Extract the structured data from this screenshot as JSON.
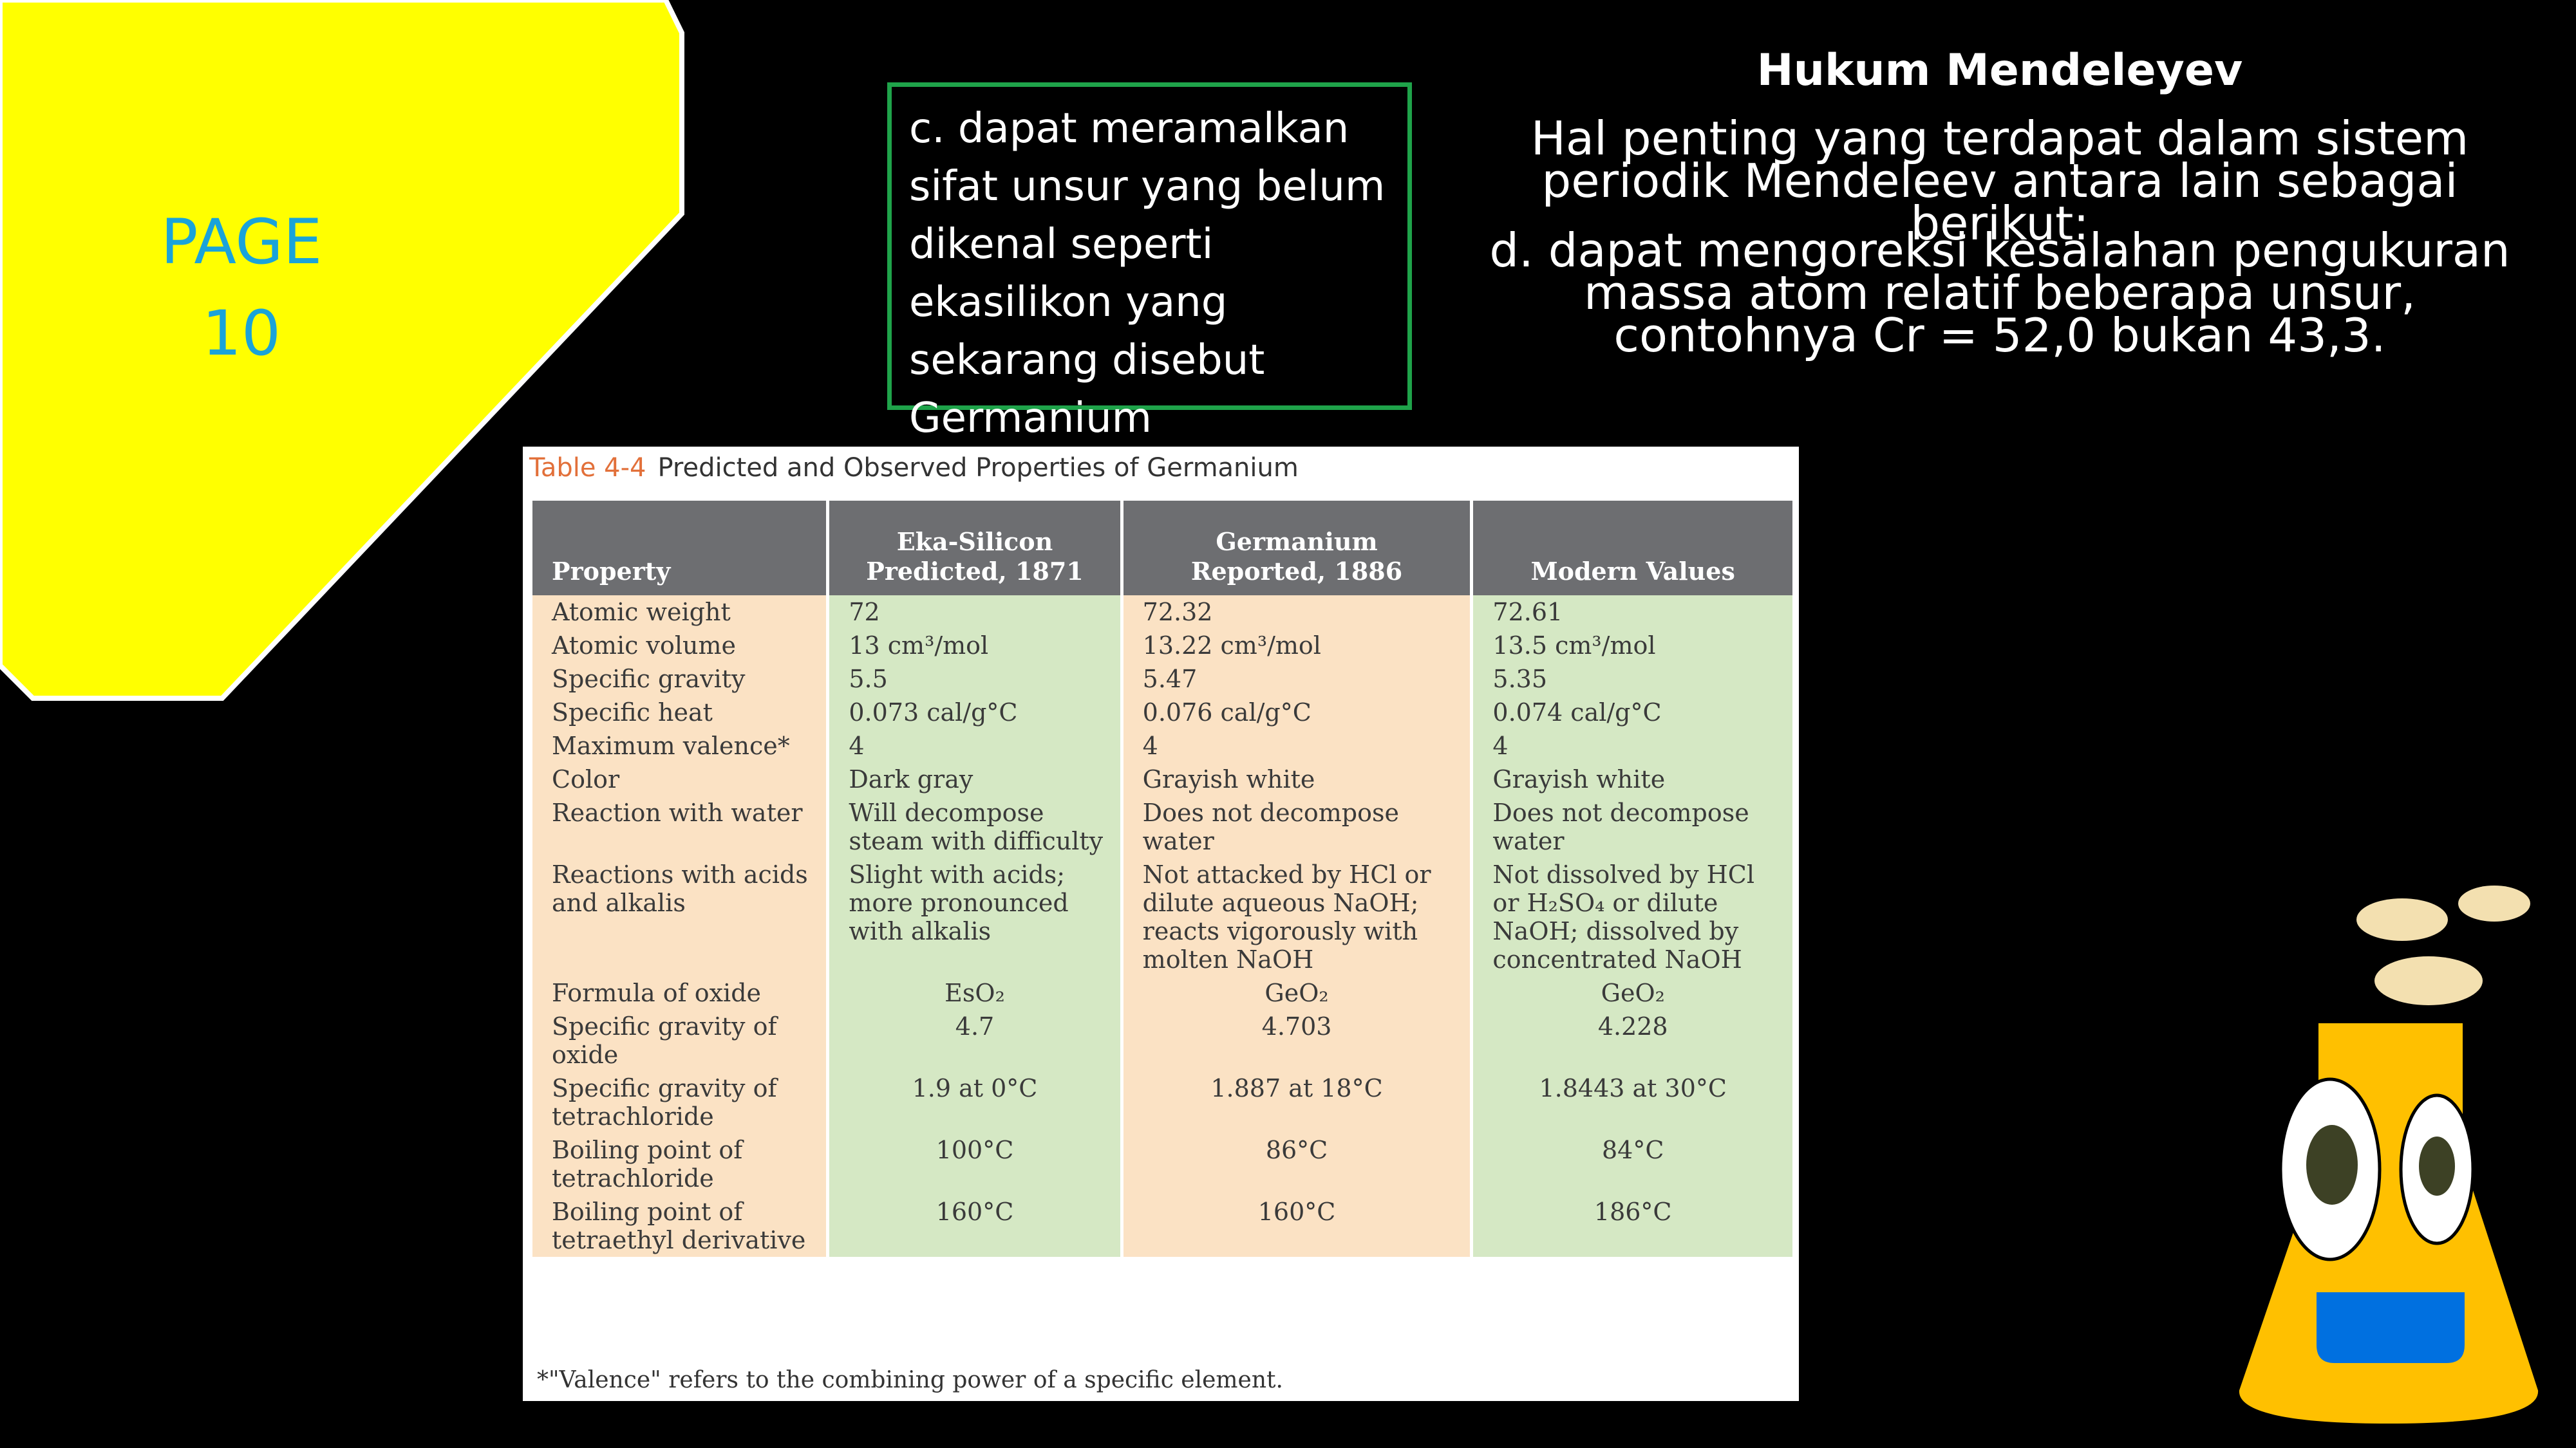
{
  "page_label": "PAGE 10",
  "callout": "c. dapat meramalkan sifat unsur yang belum dikenal seperti ekasilikon yang sekarang disebut Germanium",
  "heading": "Hukum Mendeleyev",
  "paragraphs": [
    "Hal penting yang terdapat dalam sistem periodik Mendeleev antara lain sebagai berikut:",
    "d. dapat mengoreksi kesalahan pengukuran massa atom relatif beberapa unsur, contohnya Cr = 52,0 bukan 43,3."
  ],
  "table": {
    "label": "Table 4-4",
    "caption": "Predicted and Observed Properties of Germanium",
    "columns": [
      [
        "Property"
      ],
      [
        "Eka-Silicon",
        "Predicted, 1871"
      ],
      [
        "Germanium",
        "Reported, 1886"
      ],
      [
        "Modern Values"
      ]
    ],
    "rows": [
      [
        "Atomic weight",
        "72",
        "72.32",
        "72.61"
      ],
      [
        "Atomic volume",
        "13 cm³/mol",
        "13.22 cm³/mol",
        "13.5 cm³/mol"
      ],
      [
        "Specific gravity",
        "5.5",
        "5.47",
        "5.35"
      ],
      [
        "Specific heat",
        "0.073 cal/g°C",
        "0.076 cal/g°C",
        "0.074 cal/g°C"
      ],
      [
        "Maximum valence*",
        "4",
        "4",
        "4"
      ],
      [
        "Color",
        "Dark gray",
        "Grayish white",
        "Grayish white"
      ],
      [
        "Reaction with water",
        "Will decompose steam with difficulty",
        "Does not decompose water",
        "Does not decompose water"
      ],
      [
        "Reactions with acids and alkalis",
        "Slight with acids; more pronounced with alkalis",
        "Not attacked by HCl or dilute aqueous NaOH; reacts vigorously with molten NaOH",
        "Not dissolved by HCl or H₂SO₄ or dilute NaOH; dissolved by concentrated NaOH"
      ],
      [
        "Formula of oxide",
        "EsO₂",
        "GeO₂",
        "GeO₂"
      ],
      [
        "Specific gravity of oxide",
        "4.7",
        "4.703",
        "4.228"
      ],
      [
        "Specific gravity of tetrachloride",
        "1.9 at 0°C",
        "1.887 at 18°C",
        "1.8443 at 30°C"
      ],
      [
        "Boiling point of tetrachloride",
        "100°C",
        "86°C",
        "84°C"
      ],
      [
        "Boiling point of tetraethyl derivative",
        "160°C",
        "160°C",
        "186°C"
      ]
    ],
    "footnote": "*\"Valence\" refers to the combining power of a specific element."
  }
}
